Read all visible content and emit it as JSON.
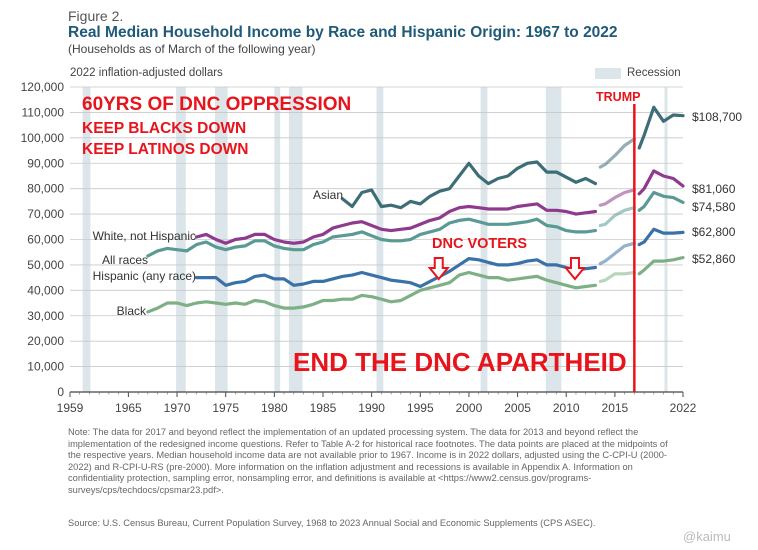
{
  "figure": {
    "label": "Figure 2.",
    "title": "Real Median Household Income by Race and Hispanic Origin: 1967 to 2022",
    "subtitle": "(Households as of March of the following year)",
    "y_unit": "2022 inflation-adjusted dollars",
    "legend_recession": "Recession",
    "note": "Note: The data for 2017 and beyond reflect the implementation of an updated processing system. The data for 2013 and beyond reflect the implementation of the redesigned income questions. Refer to Table A-2 for historical race footnotes. The data points are placed at the midpoints of the respective years. Median household income data are not available prior to 1967. Income is in 2022 dollars, adjusted using the C-CPI-U (2000-2022) and R-CPI-U-RS (pre-2000). More information on the inflation adjustment and recessions is available in Appendix A. Information on confidentiality protection, sampling error, nonsampling error, and definitions is available at <https://www2.census.gov/programs-surveys/cps/techdocs/cpsmar23.pdf>.",
    "source": "Source: U.S. Census Bureau, Current Population Survey, 1968 to 2023 Annual Social and Economic Supplements (CPS ASEC).",
    "watermark": "@kaimu"
  },
  "overlays": {
    "headline": "60YRS OF DNC OPPRESSION",
    "line2": "KEEP BLACKS DOWN",
    "line3": "KEEP LATINOS DOWN",
    "trump": "TRUMP",
    "dnc_voters": "DNC  VOTERS",
    "footer": "END THE DNC APARTHEID",
    "color": "#e8141c",
    "trump_line_year": 2017,
    "arrow_years": [
      1997,
      2011
    ]
  },
  "chart_data": {
    "type": "line",
    "x_range": [
      1959,
      2022
    ],
    "ylim": [
      0,
      120000
    ],
    "y_ticks": [
      "0",
      "10,000",
      "20,000",
      "30,000",
      "40,000",
      "50,000",
      "60,000",
      "70,000",
      "80,000",
      "90,000",
      "100,000",
      "110,000",
      "120,000"
    ],
    "x_ticks": [
      1959,
      1965,
      1970,
      1975,
      1980,
      1985,
      1990,
      1995,
      2000,
      2005,
      2010,
      2015,
      2022
    ],
    "grid": true,
    "recessions": [
      [
        1960.3,
        1961.1
      ],
      [
        1969.9,
        1970.9
      ],
      [
        1973.9,
        1975.2
      ],
      [
        1980.0,
        1980.6
      ],
      [
        1981.5,
        1982.9
      ],
      [
        1990.5,
        1991.2
      ],
      [
        2001.2,
        2001.9
      ],
      [
        2007.9,
        2009.5
      ],
      [
        2020.1,
        2020.4
      ]
    ],
    "series": [
      {
        "name": "Asian",
        "color": "#3d6e78",
        "end_label": "$108,700",
        "x": [
          1987,
          1988,
          1989,
          1990,
          1991,
          1992,
          1993,
          1994,
          1995,
          1996,
          1997,
          1998,
          1999,
          2000,
          2001,
          2002,
          2003,
          2004,
          2005,
          2006,
          2007,
          2008,
          2009,
          2010,
          2011,
          2012,
          2013,
          2013.5,
          2014,
          2015,
          2016,
          2017,
          2017.5,
          2018,
          2019,
          2020,
          2021,
          2022
        ],
        "values": [
          76000,
          73000,
          78500,
          79500,
          73000,
          73500,
          72500,
          75000,
          74000,
          77000,
          79000,
          80000,
          85000,
          90000,
          85000,
          82000,
          84000,
          85000,
          88000,
          90000,
          90500,
          86500,
          86500,
          84500,
          82500,
          84000,
          82000,
          88500,
          89500,
          93000,
          97000,
          99500,
          96000,
          101000,
          112000,
          106500,
          109000,
          108700
        ]
      },
      {
        "name": "White, not Hispanic",
        "color": "#8e3a8e",
        "end_label": "$81,060",
        "x": [
          1972,
          1973,
          1974,
          1975,
          1976,
          1977,
          1978,
          1979,
          1980,
          1981,
          1982,
          1983,
          1984,
          1985,
          1986,
          1987,
          1988,
          1989,
          1990,
          1991,
          1992,
          1993,
          1994,
          1995,
          1996,
          1997,
          1998,
          1999,
          2000,
          2001,
          2002,
          2003,
          2004,
          2005,
          2006,
          2007,
          2008,
          2009,
          2010,
          2011,
          2012,
          2013,
          2013.5,
          2014,
          2015,
          2016,
          2017,
          2017.5,
          2018,
          2019,
          2020,
          2021,
          2022
        ],
        "values": [
          61000,
          62000,
          60000,
          58500,
          60000,
          60500,
          62000,
          62000,
          60000,
          59000,
          58500,
          59000,
          61000,
          62000,
          64500,
          65500,
          66500,
          67000,
          65500,
          64000,
          63500,
          64000,
          64500,
          66000,
          67500,
          68500,
          71000,
          72500,
          73000,
          72500,
          72000,
          72000,
          72000,
          73000,
          73500,
          74000,
          71500,
          71500,
          71000,
          70000,
          70500,
          71000,
          73500,
          74000,
          76500,
          78500,
          79500,
          78000,
          80000,
          87000,
          85000,
          84000,
          81060
        ]
      },
      {
        "name": "All races",
        "color": "#5a9a94",
        "end_label": "$74,580",
        "x": [
          1967,
          1968,
          1969,
          1970,
          1971,
          1972,
          1973,
          1974,
          1975,
          1976,
          1977,
          1978,
          1979,
          1980,
          1981,
          1982,
          1983,
          1984,
          1985,
          1986,
          1987,
          1988,
          1989,
          1990,
          1991,
          1992,
          1993,
          1994,
          1995,
          1996,
          1997,
          1998,
          1999,
          2000,
          2001,
          2002,
          2003,
          2004,
          2005,
          2006,
          2007,
          2008,
          2009,
          2010,
          2011,
          2012,
          2013,
          2013.5,
          2014,
          2015,
          2016,
          2017,
          2017.5,
          2018,
          2019,
          2020,
          2021,
          2022
        ],
        "values": [
          53500,
          55500,
          56500,
          56000,
          55500,
          58000,
          59000,
          57000,
          56000,
          57000,
          57500,
          59500,
          59500,
          57500,
          56500,
          56000,
          56000,
          58000,
          59000,
          61000,
          61500,
          62000,
          63000,
          61500,
          60000,
          59500,
          59500,
          60000,
          62000,
          63000,
          64000,
          66500,
          67500,
          68000,
          67000,
          66000,
          66000,
          66000,
          66500,
          67000,
          68000,
          65500,
          65000,
          63500,
          63000,
          63000,
          63500,
          65500,
          66000,
          69500,
          71500,
          72500,
          71500,
          73000,
          78500,
          77000,
          76500,
          74580
        ]
      },
      {
        "name": "Hispanic (any race)",
        "color": "#3a72a8",
        "end_label": "$62,800",
        "x": [
          1972,
          1973,
          1974,
          1975,
          1976,
          1977,
          1978,
          1979,
          1980,
          1981,
          1982,
          1983,
          1984,
          1985,
          1986,
          1987,
          1988,
          1989,
          1990,
          1991,
          1992,
          1993,
          1994,
          1995,
          1996,
          1997,
          1998,
          1999,
          2000,
          2001,
          2002,
          2003,
          2004,
          2005,
          2006,
          2007,
          2008,
          2009,
          2010,
          2011,
          2012,
          2013,
          2013.5,
          2014,
          2015,
          2016,
          2017,
          2017.5,
          2018,
          2019,
          2020,
          2021,
          2022
        ],
        "values": [
          45000,
          45000,
          45000,
          42000,
          43000,
          43500,
          45500,
          46000,
          44500,
          44500,
          42000,
          42500,
          43500,
          43500,
          44500,
          45500,
          46000,
          47000,
          46000,
          45000,
          44000,
          43500,
          43000,
          41500,
          43500,
          45500,
          47500,
          50000,
          52500,
          52000,
          51000,
          50000,
          50000,
          50500,
          51500,
          52000,
          50000,
          50000,
          49000,
          48000,
          48500,
          49000,
          50500,
          51500,
          54500,
          57500,
          58500,
          58000,
          59000,
          64000,
          62500,
          62500,
          62800
        ]
      },
      {
        "name": "Black",
        "color": "#7fb085",
        "end_label": "$52,860",
        "x": [
          1967,
          1968,
          1969,
          1970,
          1971,
          1972,
          1973,
          1974,
          1975,
          1976,
          1977,
          1978,
          1979,
          1980,
          1981,
          1982,
          1983,
          1984,
          1985,
          1986,
          1987,
          1988,
          1989,
          1990,
          1991,
          1992,
          1993,
          1994,
          1995,
          1996,
          1997,
          1998,
          1999,
          2000,
          2001,
          2002,
          2003,
          2004,
          2005,
          2006,
          2007,
          2008,
          2009,
          2010,
          2011,
          2012,
          2013,
          2013.5,
          2014,
          2015,
          2016,
          2017,
          2017.5,
          2018,
          2019,
          2020,
          2021,
          2022
        ],
        "values": [
          31500,
          33000,
          35000,
          35000,
          34000,
          35000,
          35500,
          35000,
          34500,
          35000,
          34500,
          36000,
          35500,
          34000,
          33000,
          33000,
          33500,
          34500,
          36000,
          36000,
          36500,
          36500,
          38000,
          37500,
          36500,
          35500,
          36000,
          38000,
          40000,
          41000,
          42000,
          43000,
          46000,
          47000,
          46000,
          45000,
          45000,
          44000,
          44500,
          45000,
          45500,
          44000,
          43000,
          42000,
          41000,
          41500,
          42000,
          43500,
          44000,
          46500,
          46500,
          47000,
          46500,
          48000,
          51500,
          51500,
          52000,
          52860
        ]
      }
    ]
  }
}
